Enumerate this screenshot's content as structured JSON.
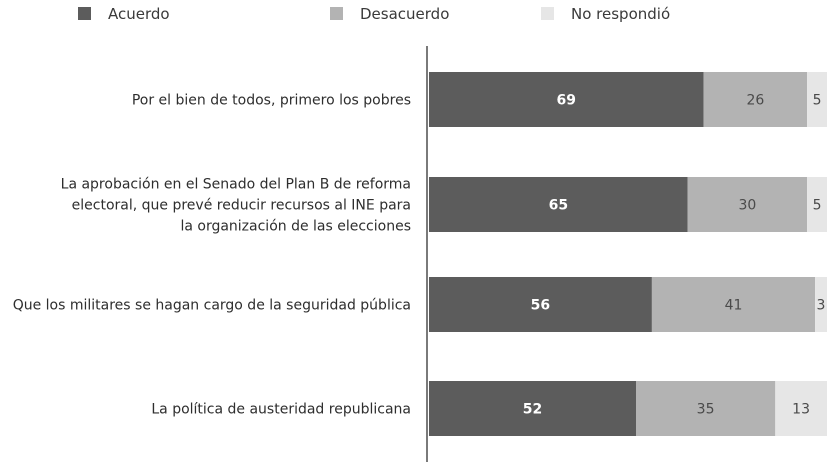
{
  "chart_data": {
    "type": "bar",
    "orientation": "horizontal",
    "stacked": true,
    "normalized_to": 100,
    "legend_position": "top",
    "grid": false,
    "categories": [
      "Por el bien de todos, primero los pobres",
      "La aprobación en el Senado del Plan B de reforma electoral, que prevé reducir recursos al INE para la organización de las elecciones",
      "Que los militares se hagan cargo de la seguridad pública",
      "La política de austeridad republicana"
    ],
    "category_lines": [
      [
        "Por el bien de todos, primero los pobres"
      ],
      [
        "La aprobación en el Senado del Plan B de reforma",
        "electoral, que prevé reducir recursos al INE para",
        "la organización de las elecciones"
      ],
      [
        "Que los militares se hagan cargo de la seguridad pública"
      ],
      [
        "La política de austeridad republicana"
      ]
    ],
    "series": [
      {
        "name": "Acuerdo",
        "values": [
          69,
          65,
          56,
          52
        ],
        "color": "#5c5c5c",
        "label_color": "#ffffff"
      },
      {
        "name": "Desacuerdo",
        "values": [
          26,
          30,
          41,
          35
        ],
        "color": "#b3b3b3",
        "label_color": "#4a4a4a"
      },
      {
        "name": "No respondió",
        "values": [
          5,
          5,
          3,
          13
        ],
        "color": "#e6e6e6",
        "label_color": "#4a4a4a"
      }
    ]
  }
}
